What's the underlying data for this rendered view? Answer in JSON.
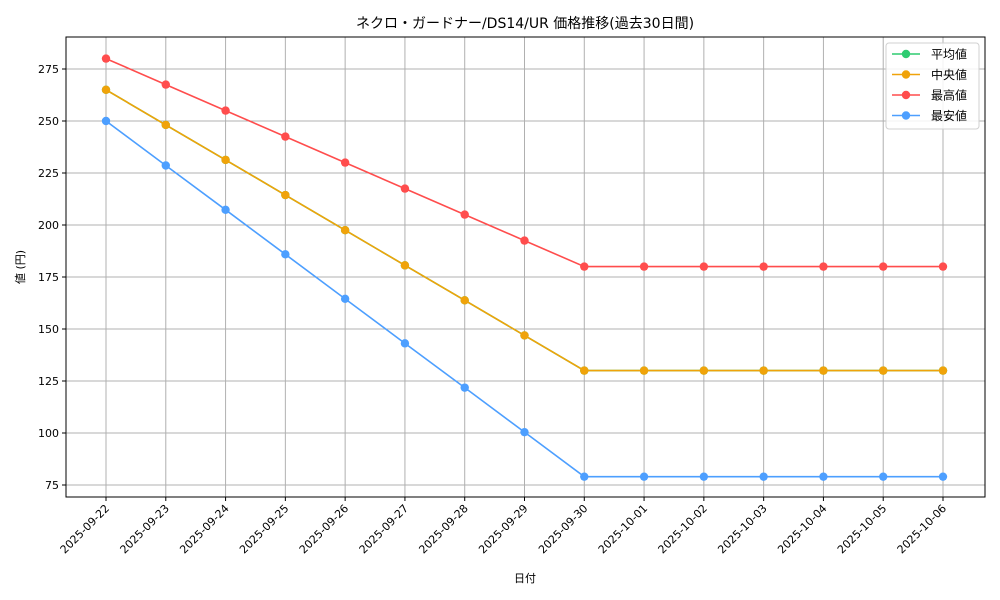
{
  "chart_data": {
    "type": "line",
    "title": "ネクロ・ガードナー/DS14/UR 価格推移(過去30日間)",
    "xlabel": "日付",
    "ylabel": "値 (円)",
    "ylim": [
      68.5,
      289.5
    ],
    "yticks": [
      75,
      100,
      125,
      150,
      175,
      200,
      225,
      250,
      275
    ],
    "grid": true,
    "legend_position": "upper right",
    "categories": [
      "2025-09-22",
      "2025-09-23",
      "2025-09-24",
      "2025-09-25",
      "2025-09-26",
      "2025-09-27",
      "2025-09-28",
      "2025-09-29",
      "2025-09-30",
      "2025-10-01",
      "2025-10-02",
      "2025-10-03",
      "2025-10-04",
      "2025-10-05",
      "2025-10-06"
    ],
    "series": [
      {
        "name": "平均値",
        "color": "#2ecc71",
        "values": [
          265,
          248.1,
          231.3,
          214.4,
          197.5,
          180.6,
          163.8,
          146.9,
          130,
          130,
          130,
          130,
          130,
          130,
          130
        ]
      },
      {
        "name": "中央値",
        "color": "#f0a30a",
        "values": [
          265,
          248.1,
          231.3,
          214.4,
          197.5,
          180.6,
          163.8,
          146.9,
          130,
          130,
          130,
          130,
          130,
          130,
          130
        ]
      },
      {
        "name": "最高値",
        "color": "#ff4d4d",
        "values": [
          280,
          267.5,
          255,
          242.5,
          230,
          217.5,
          205,
          192.5,
          180,
          180,
          180,
          180,
          180,
          180,
          180
        ]
      },
      {
        "name": "最安値",
        "color": "#4d9fff",
        "values": [
          250,
          228.6,
          207.3,
          185.9,
          164.5,
          143.1,
          121.8,
          100.4,
          79,
          79,
          79,
          79,
          79,
          79,
          79
        ]
      }
    ]
  }
}
